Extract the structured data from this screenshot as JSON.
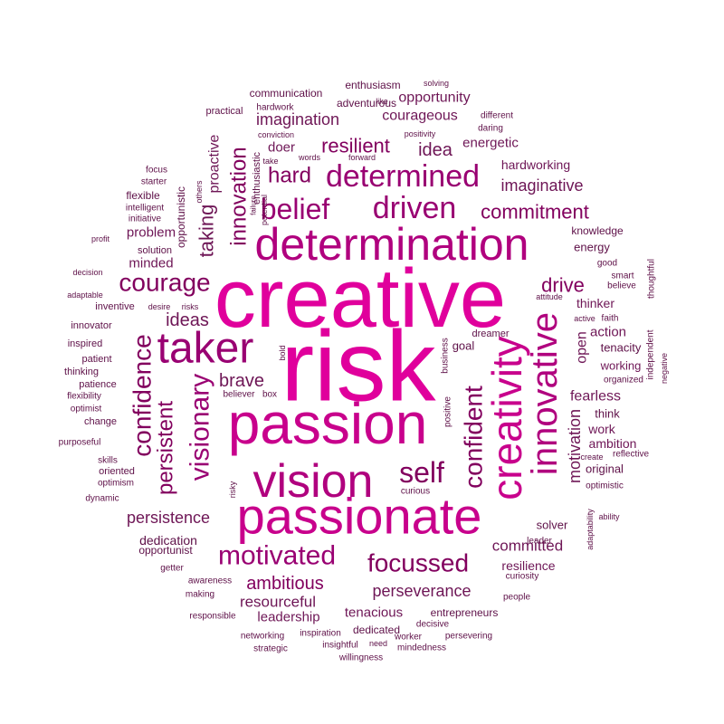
{
  "colors": {
    "background": "#ffffff",
    "palette": [
      "#e0009c",
      "#c8008c",
      "#b0007e",
      "#990072",
      "#82005e",
      "#6e1656",
      "#5e1048"
    ]
  },
  "words": [
    "creative",
    "risk",
    "passion",
    "passionate",
    "determination",
    "vision",
    "creativity",
    "taker",
    "innovative",
    "determined",
    "driven",
    "belief",
    "self",
    "motivated",
    "focussed",
    "confident",
    "confidence",
    "visionary",
    "persistent",
    "courage",
    "innovation",
    "resilient",
    "hard",
    "commitment",
    "drive",
    "imagination",
    "courageous",
    "ambitious",
    "perseverance",
    "brave",
    "ideas",
    "taking",
    "idea",
    "imaginative",
    "proactive",
    "persistence",
    "motivation",
    "resourceful",
    "opportunity",
    "energetic",
    "hardworking",
    "committed",
    "fearless",
    "problem",
    "minded",
    "doer",
    "open",
    "action",
    "leadership",
    "resilience",
    "tenacious",
    "dedication",
    "ambition",
    "solver",
    "enthusiasm",
    "communication",
    "adventurous",
    "knowledge",
    "energy",
    "thinker",
    "work",
    "working",
    "tenacity",
    "think",
    "original",
    "entrepreneurs",
    "dedicated",
    "goal",
    "opportunist",
    "flexible",
    "enthusiastic",
    "practical",
    "hardwork",
    "conviction",
    "positivity",
    "different",
    "daring",
    "take",
    "words",
    "forward",
    "others",
    "focus",
    "starter",
    "intelligent",
    "initiative",
    "opportunistic",
    "profit",
    "solution",
    "decision",
    "adaptable",
    "inventive",
    "desire",
    "risks",
    "innovator",
    "inspired",
    "patient",
    "thinking",
    "patience",
    "flexibility",
    "optimist",
    "change",
    "purposeful",
    "skills",
    "oriented",
    "optimism",
    "dynamic",
    "getter",
    "awareness",
    "making",
    "responsible",
    "networking",
    "strategic",
    "inspiration",
    "insightful",
    "need",
    "mindedness",
    "willingness",
    "decisive",
    "worker",
    "persevering",
    "people",
    "curiosity",
    "leader",
    "adaptability",
    "ability",
    "optimistic",
    "create",
    "reflective",
    "organized",
    "negative",
    "independent",
    "thoughtful",
    "good",
    "smart",
    "believe",
    "attitude",
    "active",
    "faith",
    "dreamer",
    "business",
    "positive",
    "curious",
    "risky",
    "bold",
    "believer",
    "box",
    "potential",
    "failure",
    "like",
    "solving"
  ]
}
